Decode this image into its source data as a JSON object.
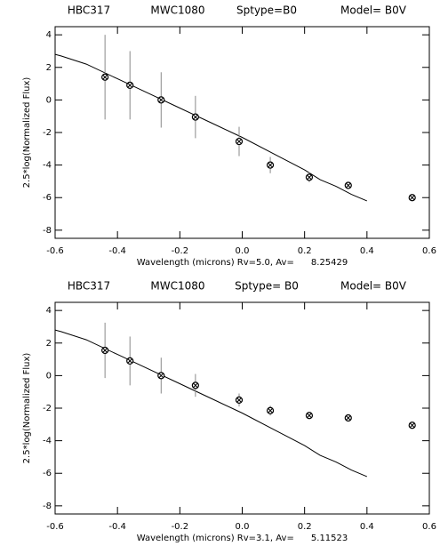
{
  "chart_data": [
    {
      "type": "scatter",
      "title": [
        "HBC317",
        "MWC1080",
        "Sptype=B0",
        "Model= B0V"
      ],
      "xlabel": "Wavelength (microns) Rv=5.0, Av=      8.25429",
      "ylabel": "2.5*log(Normalized Flux)",
      "xlim": [
        -0.6,
        0.6
      ],
      "ylim": [
        -8.5,
        4.5
      ],
      "xticks": [
        -0.6,
        -0.4,
        -0.2,
        {
          "value": 0,
          "label": "0.0"
        },
        0.2,
        0.4,
        0.6
      ],
      "yticks": [
        -8,
        -6,
        -4,
        -2,
        0,
        2,
        4
      ],
      "color": "#000000",
      "model": {
        "x": [
          -0.6,
          -0.58,
          -0.5,
          -0.4,
          -0.3,
          -0.2,
          -0.1,
          0.0,
          0.1,
          0.2,
          0.25,
          0.3,
          0.35,
          0.4
        ],
        "values": [
          2.8,
          2.7,
          2.2,
          1.3,
          0.4,
          -0.5,
          -1.4,
          -2.3,
          -3.3,
          -4.3,
          -4.9,
          -5.3,
          -5.8,
          -6.2
        ]
      },
      "observed": {
        "x": [
          -0.44,
          -0.36,
          -0.26,
          -0.15,
          -0.01,
          0.09,
          0.215,
          0.34,
          0.545
        ],
        "values": [
          1.4,
          0.9,
          0.0,
          -1.05,
          -2.55,
          -4.0,
          -4.75,
          -5.25,
          -6.0
        ],
        "errors": [
          2.6,
          2.1,
          1.7,
          1.3,
          0.9,
          0.5,
          0.3,
          0.15,
          0.1
        ]
      }
    },
    {
      "type": "scatter",
      "title": [
        "HBC317",
        "MWC1080",
        "Sptype= B0",
        "Model= B0V"
      ],
      "xlabel": "Wavelength (microns) Rv=3.1, Av=      5.11523",
      "ylabel": "2.5*log(Normalized Flux)",
      "xlim": [
        -0.6,
        0.6
      ],
      "ylim": [
        -8.5,
        4.5
      ],
      "xticks": [
        -0.6,
        -0.4,
        -0.2,
        {
          "value": 0,
          "label": "0.0"
        },
        0.2,
        0.4,
        0.6
      ],
      "yticks": [
        -8,
        -6,
        -4,
        -2,
        0,
        2,
        4
      ],
      "color": "#000000",
      "model": {
        "x": [
          -0.6,
          -0.58,
          -0.5,
          -0.4,
          -0.3,
          -0.2,
          -0.1,
          0.0,
          0.1,
          0.2,
          0.25,
          0.3,
          0.35,
          0.4
        ],
        "values": [
          2.8,
          2.7,
          2.2,
          1.3,
          0.4,
          -0.5,
          -1.4,
          -2.3,
          -3.3,
          -4.3,
          -4.9,
          -5.3,
          -5.8,
          -6.2
        ]
      },
      "observed": {
        "x": [
          -0.44,
          -0.36,
          -0.26,
          -0.15,
          -0.01,
          0.09,
          0.215,
          0.34,
          0.545
        ],
        "values": [
          1.55,
          0.9,
          0.0,
          -0.6,
          -1.5,
          -2.15,
          -2.45,
          -2.6,
          -3.05
        ],
        "errors": [
          1.7,
          1.5,
          1.1,
          0.7,
          0.4,
          0.3,
          0.15,
          0.1,
          0.1
        ]
      }
    }
  ]
}
